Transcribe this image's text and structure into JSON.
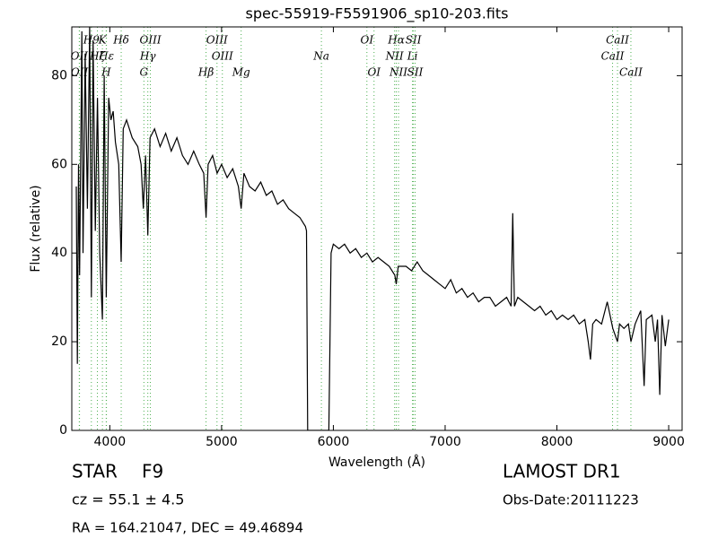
{
  "chart_data": {
    "type": "line",
    "title": "spec-55919-F5591906_sp10-203.fits",
    "xlabel": "Wavelength (Å)",
    "ylabel": "Flux (relative)",
    "xlim": [
      3660,
      9120
    ],
    "ylim": [
      0,
      91
    ],
    "xticks": [
      4000,
      5000,
      6000,
      7000,
      8000,
      9000
    ],
    "yticks": [
      0,
      20,
      40,
      60,
      80
    ],
    "x": [
      3700,
      3710,
      3720,
      3730,
      3750,
      3760,
      3780,
      3800,
      3820,
      3835,
      3850,
      3870,
      3890,
      3910,
      3934,
      3950,
      3968,
      3990,
      4010,
      4030,
      4050,
      4080,
      4102,
      4120,
      4150,
      4200,
      4250,
      4280,
      4300,
      4320,
      4340,
      4360,
      4400,
      4450,
      4500,
      4550,
      4600,
      4650,
      4700,
      4750,
      4800,
      4840,
      4861,
      4880,
      4920,
      4960,
      5000,
      5050,
      5100,
      5150,
      5175,
      5200,
      5250,
      5300,
      5350,
      5400,
      5450,
      5500,
      5550,
      5600,
      5650,
      5700,
      5750,
      5760,
      5770,
      5950,
      5960,
      5980,
      6000,
      6050,
      6100,
      6150,
      6200,
      6250,
      6300,
      6350,
      6400,
      6450,
      6500,
      6550,
      6563,
      6580,
      6650,
      6700,
      6750,
      6800,
      6850,
      6900,
      6950,
      7000,
      7050,
      7100,
      7150,
      7200,
      7250,
      7300,
      7350,
      7400,
      7450,
      7500,
      7550,
      7590,
      7605,
      7620,
      7650,
      7700,
      7750,
      7800,
      7850,
      7900,
      7950,
      8000,
      8050,
      8100,
      8150,
      8200,
      8250,
      8280,
      8300,
      8320,
      8350,
      8400,
      8450,
      8500,
      8542,
      8560,
      8600,
      8640,
      8662,
      8700,
      8750,
      8780,
      8800,
      8850,
      8880,
      8900,
      8920,
      8940,
      8970,
      9000
    ],
    "series": [
      {
        "name": "flux",
        "color": "#000000",
        "values": [
          55,
          15,
          60,
          35,
          90,
          40,
          85,
          50,
          91,
          30,
          88,
          45,
          75,
          40,
          25,
          80,
          30,
          75,
          70,
          72,
          65,
          60,
          38,
          68,
          70,
          66,
          64,
          60,
          50,
          62,
          44,
          66,
          68,
          64,
          67,
          63,
          66,
          62,
          60,
          63,
          60,
          58,
          48,
          60,
          62,
          58,
          60,
          57,
          59,
          55,
          50,
          58,
          55,
          54,
          56,
          53,
          54,
          51,
          52,
          50,
          49,
          48,
          46,
          45,
          0,
          0,
          0,
          40,
          42,
          41,
          42,
          40,
          41,
          39,
          40,
          38,
          39,
          38,
          37,
          35,
          33,
          37,
          37,
          36,
          38,
          36,
          35,
          34,
          33,
          32,
          34,
          31,
          32,
          30,
          31,
          29,
          30,
          30,
          28,
          29,
          30,
          28,
          49,
          28,
          30,
          29,
          28,
          27,
          28,
          26,
          27,
          25,
          26,
          25,
          26,
          24,
          25,
          20,
          16,
          24,
          25,
          24,
          29,
          23,
          20,
          24,
          23,
          24,
          20,
          24,
          27,
          10,
          25,
          26,
          20,
          25,
          8,
          26,
          19,
          25
        ]
      }
    ],
    "line_color": "#4caf50",
    "line_marks": [
      {
        "label": "H9",
        "wavelength": 3835
      },
      {
        "label": "K",
        "wavelength": 3934
      },
      {
        "label": "Hδ",
        "wavelength": 4102
      },
      {
        "label": "OIII",
        "wavelength": 4363
      },
      {
        "label": "OIII",
        "wavelength": 4959
      },
      {
        "label": "OI",
        "wavelength": 6300
      },
      {
        "label": "Hα",
        "wavelength": 6563
      },
      {
        "label": "SII",
        "wavelength": 6716
      },
      {
        "label": "CaII",
        "wavelength": 8542
      },
      {
        "label": "OII",
        "wavelength": 3727
      },
      {
        "label": "Hζ",
        "wavelength": 3889
      },
      {
        "label": "Hε",
        "wavelength": 3970
      },
      {
        "label": "Hγ",
        "wavelength": 4340
      },
      {
        "label": "OIII",
        "wavelength": 5007
      },
      {
        "label": "Na",
        "wavelength": 5893
      },
      {
        "label": "NII",
        "wavelength": 6548
      },
      {
        "label": "Li",
        "wavelength": 6708
      },
      {
        "label": "CaII",
        "wavelength": 8498
      },
      {
        "label": "OII",
        "wavelength": 3729
      },
      {
        "label": "H",
        "wavelength": 3968
      },
      {
        "label": "G",
        "wavelength": 4305
      },
      {
        "label": "Hβ",
        "wavelength": 4861
      },
      {
        "label": "Mg",
        "wavelength": 5175
      },
      {
        "label": "OI",
        "wavelength": 6364
      },
      {
        "label": "NII",
        "wavelength": 6583
      },
      {
        "label": "SII",
        "wavelength": 6731
      },
      {
        "label": "CaII",
        "wavelength": 8662
      }
    ],
    "object_class": "STAR",
    "subclass": "F9",
    "redshift_text": "cz = 55.1 ± 4.5",
    "coordinates": "RA = 164.21047, DEC = 49.46894",
    "survey": "LAMOST DR1",
    "obs_date": "Obs-Date:20111223"
  }
}
